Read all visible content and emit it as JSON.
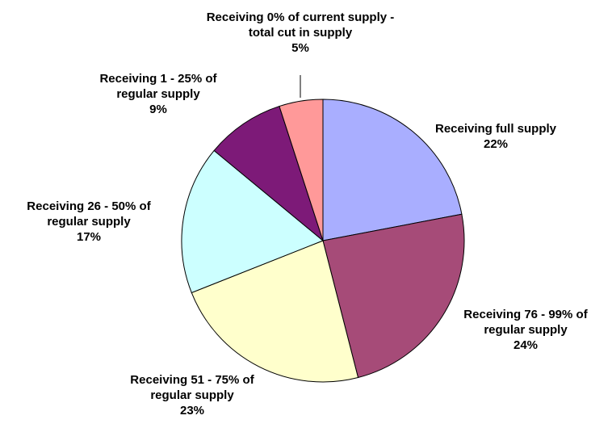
{
  "chart_data": {
    "type": "pie",
    "categories": [
      "Receiving full supply",
      "Receiving 76 - 99% of regular supply",
      "Receiving 51 - 75% of regular supply",
      "Receiving 26 - 50% of regular supply",
      "Receiving 1 - 25% of regular supply",
      "Receiving 0% of current supply - total cut in supply"
    ],
    "values": [
      22,
      24,
      23,
      17,
      9,
      5
    ],
    "value_labels": [
      "22%",
      "24%",
      "23%",
      "17%",
      "9%",
      "5%"
    ],
    "colors": [
      "#a9aeff",
      "#a64b78",
      "#ffffcc",
      "#ccffff",
      "#7d1a78",
      "#ff9999"
    ]
  }
}
